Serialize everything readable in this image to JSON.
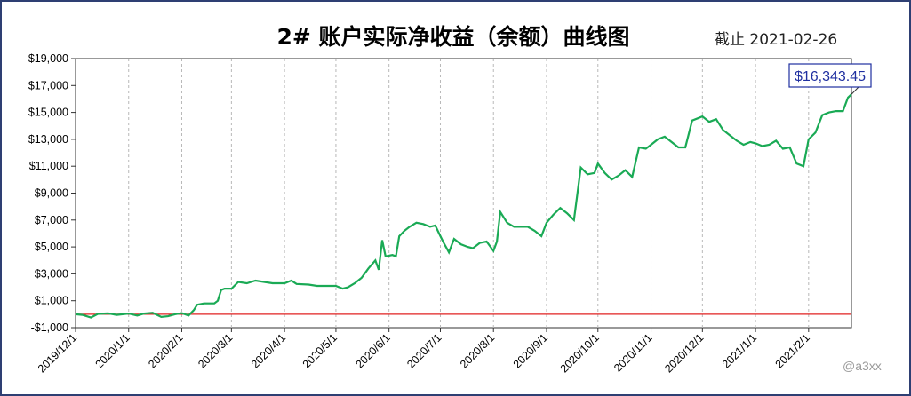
{
  "title": "2# 账户实际净收益（余额）曲线图",
  "as_of": "截止 2021-02-26",
  "watermark": "@a3xx",
  "colors": {
    "line": "#1aaa55",
    "baseline": "#e02020",
    "callout_border": "#1f2fa0",
    "callout_text": "#1f2fa0",
    "frame": "#2e3f73"
  },
  "chart_data": {
    "type": "line",
    "title": "2# 账户实际净收益（余额）曲线图",
    "xlabel": "",
    "ylabel": "",
    "ylim": [
      -1000,
      19000
    ],
    "grid": "vertical-dashed",
    "baseline_value": 0,
    "y_ticks": [
      "$19,000",
      "$17,000",
      "$15,000",
      "$13,000",
      "$11,000",
      "$9,000",
      "$7,000",
      "$5,000",
      "$3,000",
      "$1,000",
      "-$1,000"
    ],
    "y_tick_values": [
      19000,
      17000,
      15000,
      13000,
      11000,
      9000,
      7000,
      5000,
      3000,
      1000,
      -1000
    ],
    "x_ticks": [
      "2019/12/1",
      "2020/1/1",
      "2020/2/1",
      "2020/3/1",
      "2020/4/1",
      "2020/5/1",
      "2020/6/1",
      "2020/7/1",
      "2020/8/1",
      "2020/9/1",
      "2020/10/1",
      "2020/11/1",
      "2020/12/1",
      "2021/1/1",
      "2021/2/1"
    ],
    "end_label": "$16,343.45",
    "series": [
      {
        "values": [
          [
            "2019-12-01",
            0
          ],
          [
            "2019-12-05",
            -50
          ],
          [
            "2019-12-10",
            -250
          ],
          [
            "2019-12-14",
            20
          ],
          [
            "2019-12-20",
            60
          ],
          [
            "2019-12-25",
            -50
          ],
          [
            "2020-01-01",
            50
          ],
          [
            "2020-01-06",
            -100
          ],
          [
            "2020-01-10",
            50
          ],
          [
            "2020-01-15",
            100
          ],
          [
            "2020-01-20",
            -200
          ],
          [
            "2020-01-24",
            -150
          ],
          [
            "2020-01-28",
            0
          ],
          [
            "2020-02-01",
            80
          ],
          [
            "2020-02-05",
            -100
          ],
          [
            "2020-02-08",
            300
          ],
          [
            "2020-02-10",
            700
          ],
          [
            "2020-02-14",
            800
          ],
          [
            "2020-02-20",
            800
          ],
          [
            "2020-02-22",
            1000
          ],
          [
            "2020-02-24",
            1800
          ],
          [
            "2020-02-26",
            1900
          ],
          [
            "2020-03-01",
            1900
          ],
          [
            "2020-03-05",
            2400
          ],
          [
            "2020-03-10",
            2300
          ],
          [
            "2020-03-15",
            2500
          ],
          [
            "2020-03-20",
            2400
          ],
          [
            "2020-03-25",
            2300
          ],
          [
            "2020-04-01",
            2300
          ],
          [
            "2020-04-05",
            2500
          ],
          [
            "2020-04-08",
            2250
          ],
          [
            "2020-04-15",
            2200
          ],
          [
            "2020-04-20",
            2100
          ],
          [
            "2020-04-25",
            2100
          ],
          [
            "2020-05-01",
            2100
          ],
          [
            "2020-05-05",
            1900
          ],
          [
            "2020-05-08",
            2000
          ],
          [
            "2020-05-12",
            2300
          ],
          [
            "2020-05-16",
            2700
          ],
          [
            "2020-05-20",
            3400
          ],
          [
            "2020-05-24",
            4000
          ],
          [
            "2020-05-26",
            3300
          ],
          [
            "2020-05-28",
            5500
          ],
          [
            "2020-05-30",
            4300
          ],
          [
            "2020-06-03",
            4400
          ],
          [
            "2020-06-05",
            4300
          ],
          [
            "2020-06-07",
            5800
          ],
          [
            "2020-06-10",
            6200
          ],
          [
            "2020-06-13",
            6500
          ],
          [
            "2020-06-17",
            6800
          ],
          [
            "2020-06-21",
            6700
          ],
          [
            "2020-06-25",
            6500
          ],
          [
            "2020-06-28",
            6600
          ],
          [
            "2020-07-01",
            5800
          ],
          [
            "2020-07-03",
            5300
          ],
          [
            "2020-07-06",
            4600
          ],
          [
            "2020-07-09",
            5600
          ],
          [
            "2020-07-13",
            5200
          ],
          [
            "2020-07-17",
            5000
          ],
          [
            "2020-07-20",
            4900
          ],
          [
            "2020-07-24",
            5300
          ],
          [
            "2020-07-28",
            5400
          ],
          [
            "2020-08-01",
            4700
          ],
          [
            "2020-08-03",
            5400
          ],
          [
            "2020-08-05",
            7600
          ],
          [
            "2020-08-09",
            6800
          ],
          [
            "2020-08-13",
            6500
          ],
          [
            "2020-08-17",
            6500
          ],
          [
            "2020-08-21",
            6500
          ],
          [
            "2020-08-25",
            6200
          ],
          [
            "2020-08-29",
            5800
          ],
          [
            "2020-09-01",
            6800
          ],
          [
            "2020-09-05",
            7400
          ],
          [
            "2020-09-09",
            7900
          ],
          [
            "2020-09-13",
            7500
          ],
          [
            "2020-09-17",
            7000
          ],
          [
            "2020-09-21",
            10900
          ],
          [
            "2020-09-25",
            10400
          ],
          [
            "2020-09-29",
            10500
          ],
          [
            "2020-10-01",
            11200
          ],
          [
            "2020-10-05",
            10500
          ],
          [
            "2020-10-09",
            10000
          ],
          [
            "2020-10-13",
            10300
          ],
          [
            "2020-10-17",
            10700
          ],
          [
            "2020-10-21",
            10200
          ],
          [
            "2020-10-25",
            12400
          ],
          [
            "2020-10-29",
            12300
          ],
          [
            "2020-11-01",
            12600
          ],
          [
            "2020-11-05",
            13000
          ],
          [
            "2020-11-09",
            13200
          ],
          [
            "2020-11-13",
            12800
          ],
          [
            "2020-11-17",
            12400
          ],
          [
            "2020-11-21",
            12400
          ],
          [
            "2020-11-25",
            14400
          ],
          [
            "2020-11-29",
            14600
          ],
          [
            "2020-12-01",
            14700
          ],
          [
            "2020-12-05",
            14300
          ],
          [
            "2020-12-09",
            14500
          ],
          [
            "2020-12-13",
            13700
          ],
          [
            "2020-12-17",
            13300
          ],
          [
            "2020-12-21",
            12900
          ],
          [
            "2020-12-25",
            12600
          ],
          [
            "2020-12-29",
            12800
          ],
          [
            "2021-01-01",
            12700
          ],
          [
            "2021-01-05",
            12500
          ],
          [
            "2021-01-09",
            12600
          ],
          [
            "2021-01-13",
            12900
          ],
          [
            "2021-01-17",
            12300
          ],
          [
            "2021-01-21",
            12400
          ],
          [
            "2021-01-25",
            11200
          ],
          [
            "2021-01-29",
            11000
          ],
          [
            "2021-02-01",
            13000
          ],
          [
            "2021-02-05",
            13500
          ],
          [
            "2021-02-09",
            14800
          ],
          [
            "2021-02-13",
            15000
          ],
          [
            "2021-02-17",
            15100
          ],
          [
            "2021-02-21",
            15100
          ],
          [
            "2021-02-24",
            16100
          ],
          [
            "2021-02-26",
            16343.45
          ]
        ]
      }
    ]
  }
}
